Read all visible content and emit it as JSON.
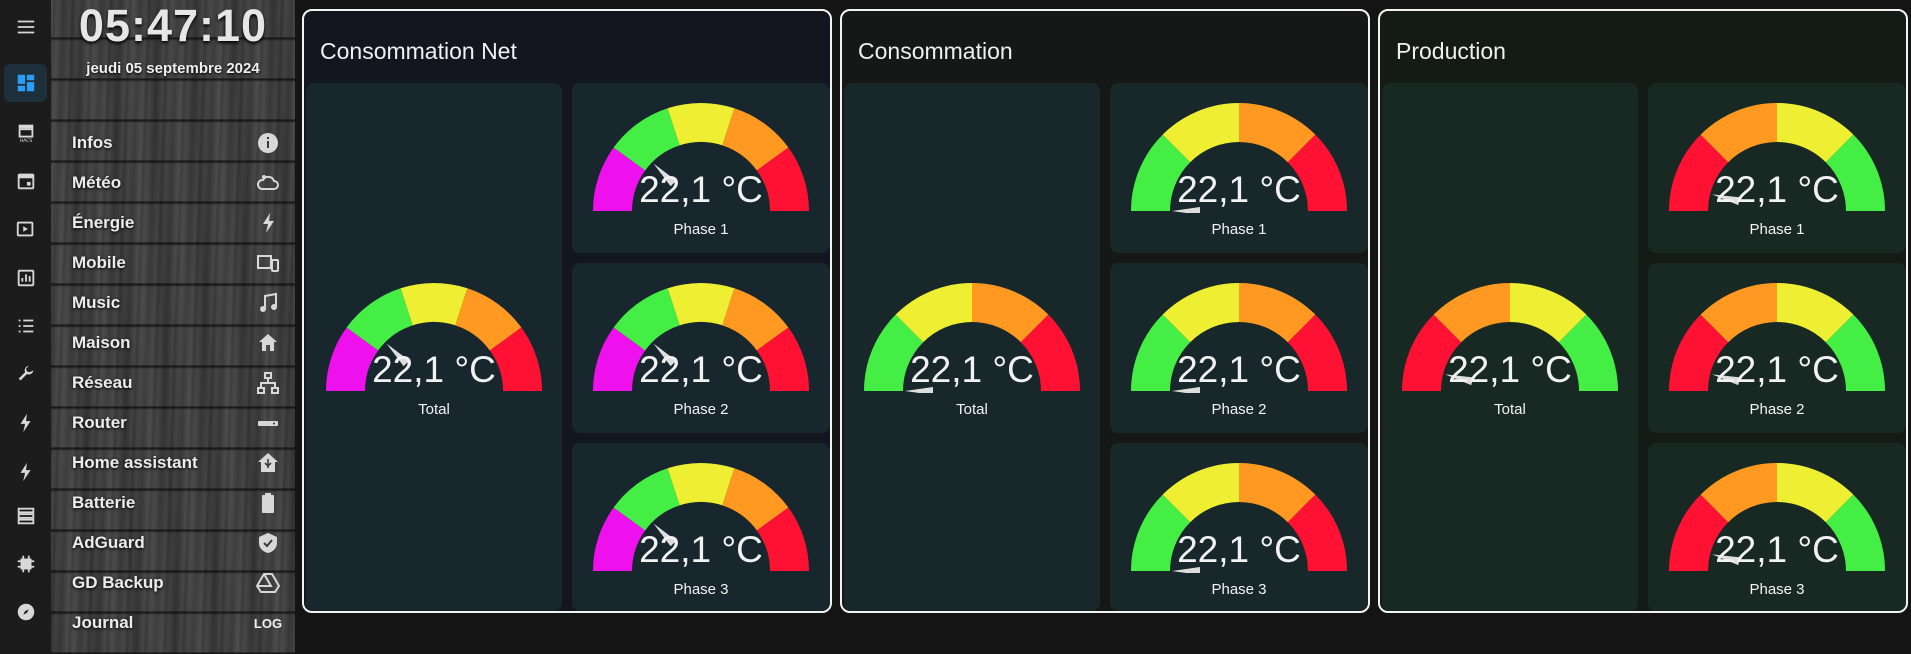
{
  "clock": {
    "time": "05:47:10",
    "date": "jeudi 05 septembre 2024"
  },
  "rail": [
    {
      "name": "menu-icon",
      "active": false
    },
    {
      "name": "dashboard-icon",
      "active": true
    },
    {
      "name": "hacs-icon",
      "active": false
    },
    {
      "name": "calendar-icon",
      "active": false
    },
    {
      "name": "media-icon",
      "active": false
    },
    {
      "name": "history-icon",
      "active": false
    },
    {
      "name": "logbook-icon",
      "active": false
    },
    {
      "name": "wrench-icon",
      "active": false
    },
    {
      "name": "energy-icon",
      "active": false
    },
    {
      "name": "energy-icon",
      "active": false
    },
    {
      "name": "server-icon",
      "active": false
    },
    {
      "name": "memory-icon",
      "active": false
    },
    {
      "name": "compass-icon",
      "active": false
    }
  ],
  "menu": [
    {
      "label": "Infos",
      "icon": "info-icon"
    },
    {
      "label": "Météo",
      "icon": "weather-icon"
    },
    {
      "label": "Énergie",
      "icon": "lightning-icon"
    },
    {
      "label": "Mobile",
      "icon": "devices-icon"
    },
    {
      "label": "Music",
      "icon": "music-icon"
    },
    {
      "label": "Maison",
      "icon": "home-icon"
    },
    {
      "label": "Réseau",
      "icon": "network-icon"
    },
    {
      "label": "Router",
      "icon": "router-icon"
    },
    {
      "label": "Home assistant",
      "icon": "home-assistant-icon"
    },
    {
      "label": "Batterie",
      "icon": "battery-icon"
    },
    {
      "label": "AdGuard",
      "icon": "shield-check-icon"
    },
    {
      "label": "GD Backup",
      "icon": "google-drive-icon"
    },
    {
      "label": "Journal",
      "icon": "log-icon",
      "icon_text": "LOG"
    }
  ],
  "cards": [
    {
      "title": "Consommation Net",
      "background": "#14161f",
      "tile_color": "#18272e",
      "segments": [
        "#ee11ee",
        "#44ee44",
        "#eeee33",
        "#ff9922",
        "#ff1133"
      ],
      "gauges": [
        {
          "name": "Total",
          "value": "22,1 °C",
          "level": 0.25
        },
        {
          "name": "Phase 1",
          "value": "22,1 °C",
          "level": 0.25
        },
        {
          "name": "Phase 2",
          "value": "22,1 °C",
          "level": 0.25
        },
        {
          "name": "Phase 3",
          "value": "22,1 °C",
          "level": 0.25
        }
      ]
    },
    {
      "title": "Consommation",
      "background": "#151816",
      "tile_color": "#18282a",
      "segments": [
        "#44ee44",
        "#eeee33",
        "#ff9922",
        "#ff1133"
      ],
      "gauges": [
        {
          "name": "Total",
          "value": "22,1 °C",
          "level": 0.0
        },
        {
          "name": "Phase 1",
          "value": "22,1 °C",
          "level": 0.0
        },
        {
          "name": "Phase 2",
          "value": "22,1 °C",
          "level": 0.0
        },
        {
          "name": "Phase 3",
          "value": "22,1 °C",
          "level": 0.0
        }
      ]
    },
    {
      "title": "Production",
      "background": "#141a15",
      "tile_color": "#182924",
      "segments": [
        "#ff1133",
        "#ff9922",
        "#eeee33",
        "#44ee44"
      ],
      "gauges": [
        {
          "name": "Total",
          "value": "22,1 °C",
          "level": 0.08
        },
        {
          "name": "Phase 1",
          "value": "22,1 °C",
          "level": 0.08
        },
        {
          "name": "Phase 2",
          "value": "22,1 °C",
          "level": 0.08
        },
        {
          "name": "Phase 3",
          "value": "22,1 °C",
          "level": 0.08
        }
      ]
    }
  ]
}
